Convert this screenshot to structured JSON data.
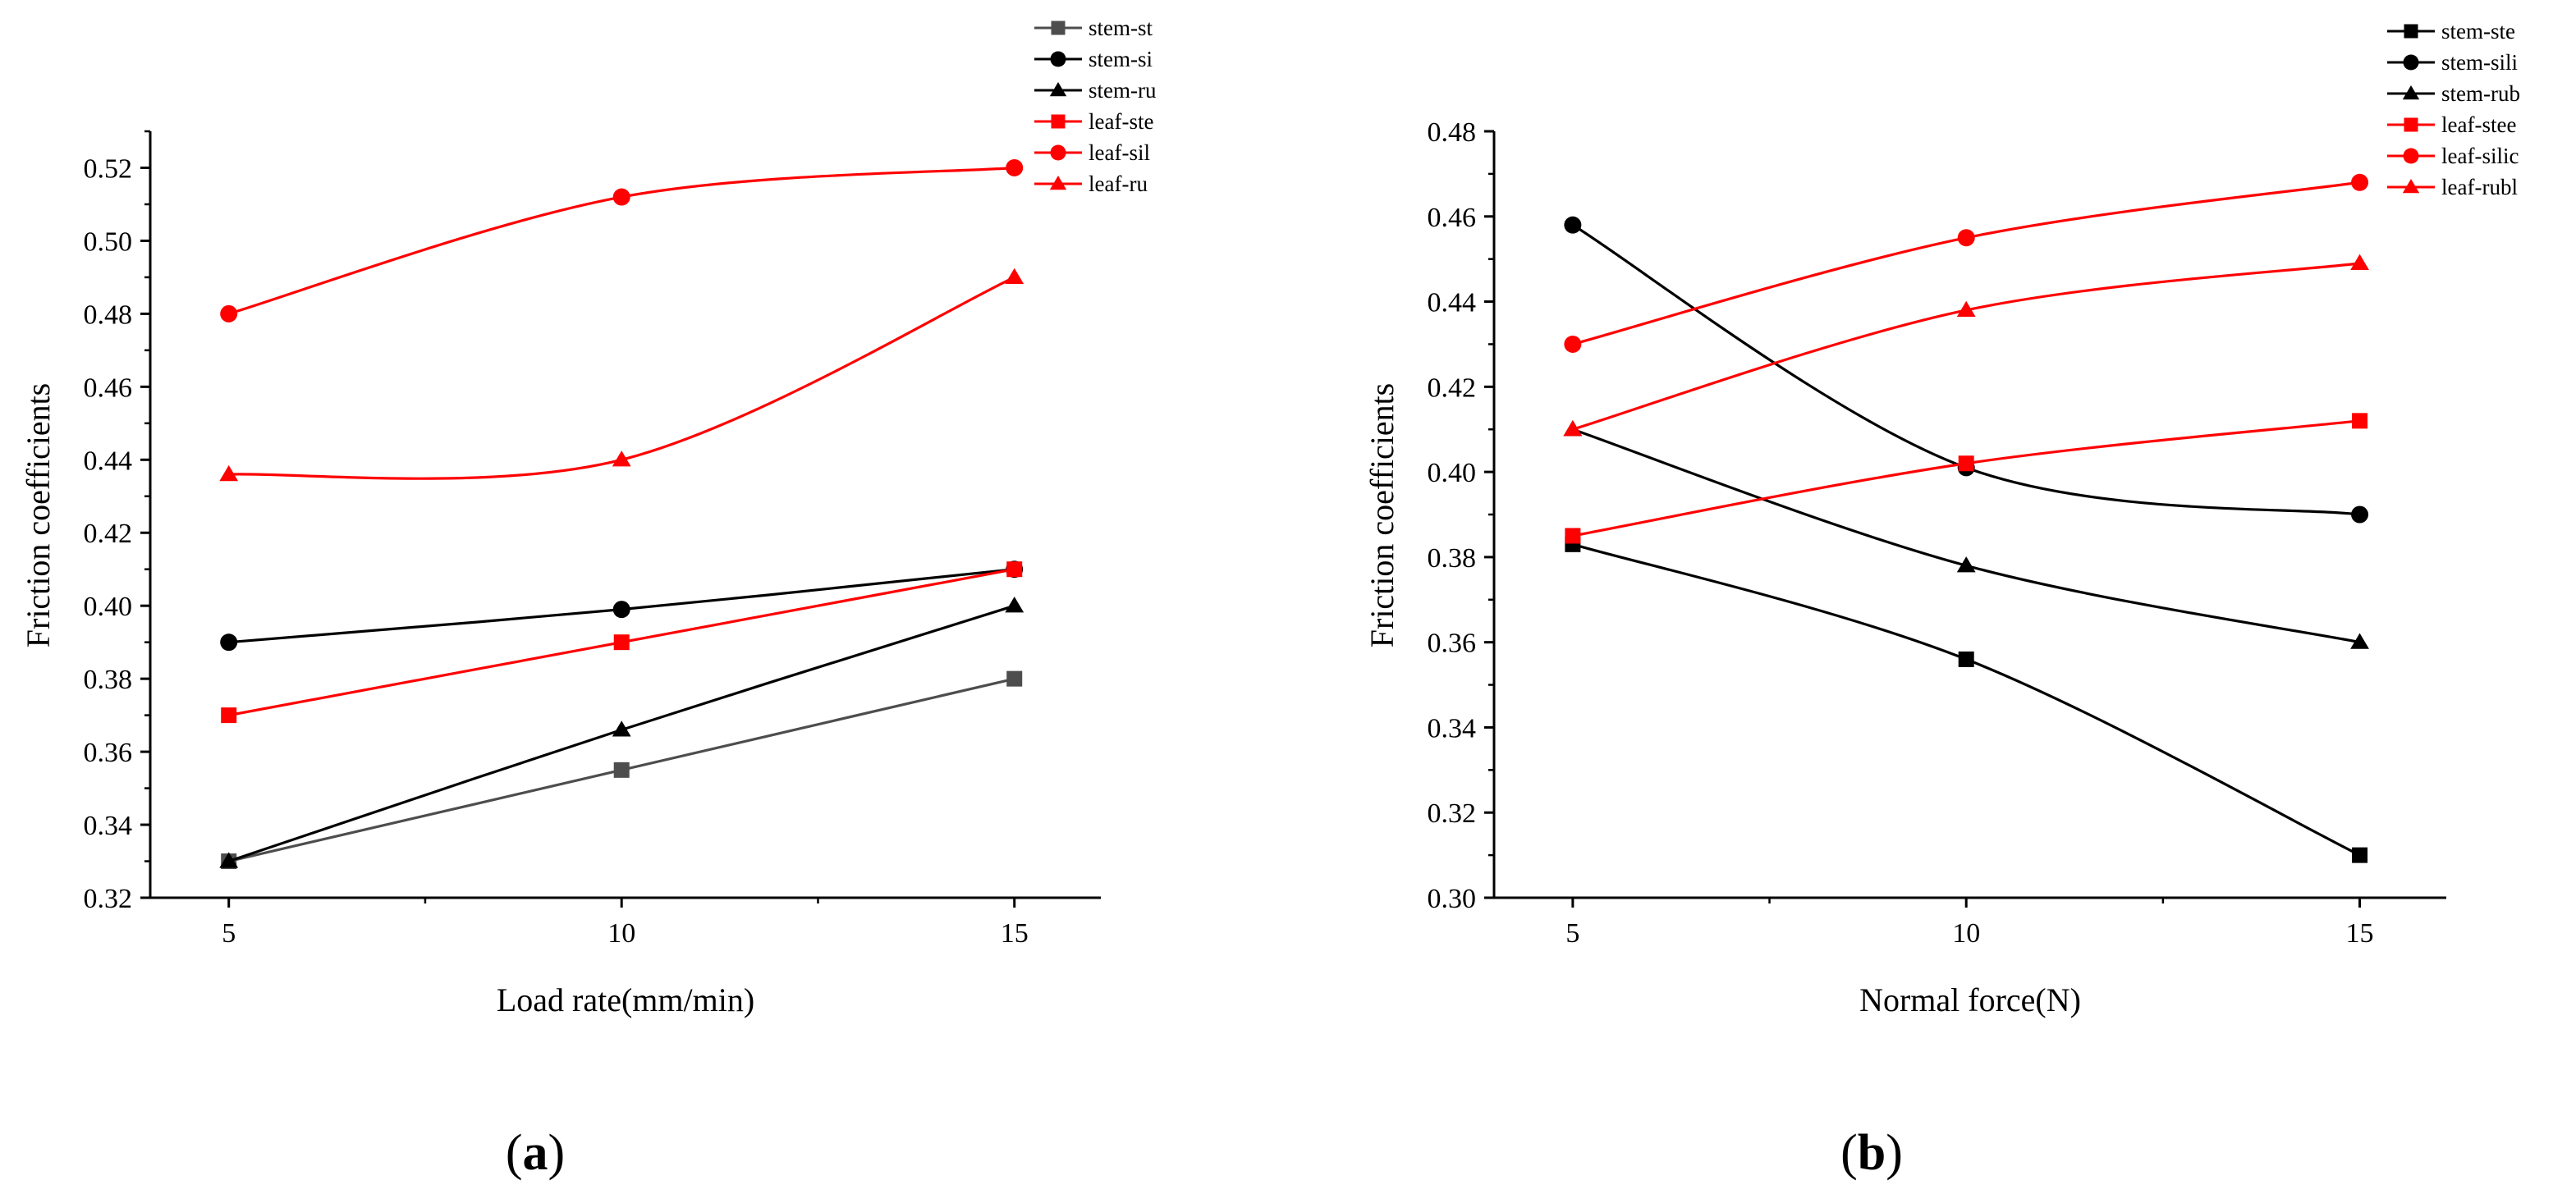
{
  "chart_data": [
    {
      "type": "line",
      "panel_label": "a",
      "xlabel": "Load rate(mm/min)",
      "ylabel": "Friction coefficients",
      "x": [
        5,
        10,
        15
      ],
      "x_ticks": [
        "5",
        "10",
        "15"
      ],
      "y_ticks": [
        "0.32",
        "0.34",
        "0.36",
        "0.38",
        "0.40",
        "0.42",
        "0.44",
        "0.46",
        "0.48",
        "0.50",
        "0.52"
      ],
      "xlim": [
        4,
        16.1
      ],
      "ylim": [
        0.32,
        0.53
      ],
      "legend_position": "top-right",
      "series": [
        {
          "name": "stem-st",
          "marker": "square",
          "color": "#4d4d4d",
          "values": [
            0.33,
            0.355,
            0.38
          ]
        },
        {
          "name": "stem-si",
          "marker": "circle",
          "color": "#000000",
          "values": [
            0.39,
            0.399,
            0.41
          ]
        },
        {
          "name": "stem-ru",
          "marker": "triangle",
          "color": "#000000",
          "values": [
            0.33,
            0.366,
            0.4
          ]
        },
        {
          "name": "leaf-ste",
          "marker": "square",
          "color": "#ff0000",
          "values": [
            0.37,
            0.39,
            0.41
          ]
        },
        {
          "name": "leaf-sil",
          "marker": "circle",
          "color": "#ff0000",
          "values": [
            0.48,
            0.512,
            0.52
          ]
        },
        {
          "name": "leaf-ru",
          "marker": "triangle",
          "color": "#ff0000",
          "values": [
            0.436,
            0.44,
            0.49
          ]
        }
      ]
    },
    {
      "type": "line",
      "panel_label": "b",
      "xlabel": "Normal force(N)",
      "ylabel": "Friction coefficients",
      "x": [
        5,
        10,
        15
      ],
      "x_ticks": [
        "5",
        "10",
        "15"
      ],
      "y_ticks": [
        "0.30",
        "0.32",
        "0.34",
        "0.36",
        "0.38",
        "0.40",
        "0.42",
        "0.44",
        "0.46",
        "0.48"
      ],
      "xlim": [
        4,
        16.1
      ],
      "ylim": [
        0.3,
        0.48
      ],
      "legend_position": "top-right",
      "series": [
        {
          "name": "stem-ste",
          "marker": "square",
          "color": "#000000",
          "values": [
            0.383,
            0.356,
            0.31
          ]
        },
        {
          "name": "stem-sili",
          "marker": "circle",
          "color": "#000000",
          "values": [
            0.458,
            0.401,
            0.39
          ]
        },
        {
          "name": "stem-rub",
          "marker": "triangle",
          "color": "#000000",
          "values": [
            0.41,
            0.378,
            0.36
          ]
        },
        {
          "name": "leaf-stee",
          "marker": "square",
          "color": "#ff0000",
          "values": [
            0.385,
            0.402,
            0.412
          ]
        },
        {
          "name": "leaf-silic",
          "marker": "circle",
          "color": "#ff0000",
          "values": [
            0.43,
            0.455,
            0.468
          ]
        },
        {
          "name": "leaf-rubl",
          "marker": "triangle",
          "color": "#ff0000",
          "values": [
            0.41,
            0.438,
            0.449
          ]
        }
      ]
    }
  ]
}
